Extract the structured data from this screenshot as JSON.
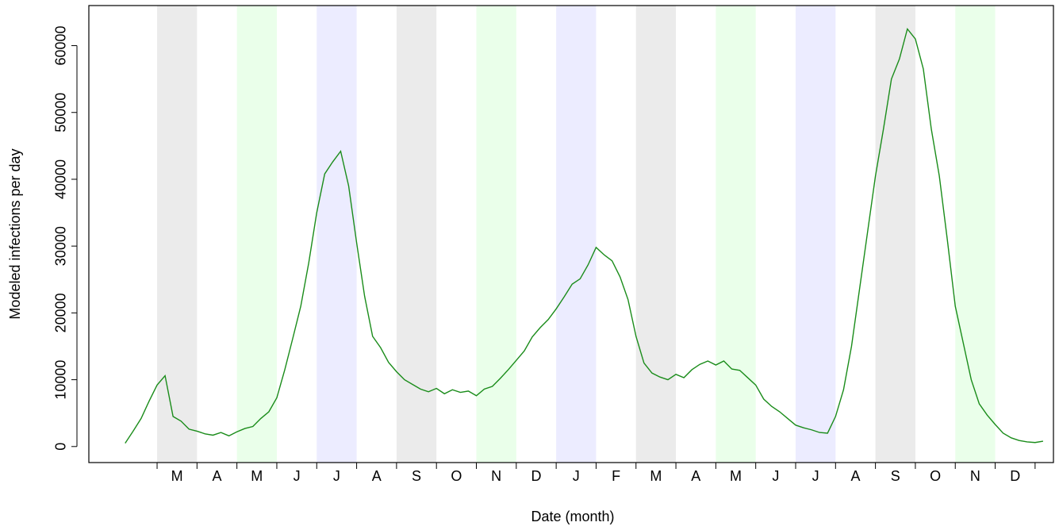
{
  "chart_data": {
    "type": "line",
    "x_label": "Date (month)",
    "y_label": "Modeled infections per day",
    "categories": [
      "M",
      "A",
      "M",
      "J",
      "J",
      "A",
      "S",
      "O",
      "N",
      "D",
      "J",
      "F",
      "M",
      "A",
      "M",
      "J",
      "J",
      "A",
      "S",
      "O",
      "N",
      "D"
    ],
    "xlim": [
      -1.71,
      22.46
    ],
    "ylim": [
      -2400,
      66000
    ],
    "xticks": [
      0,
      1,
      2,
      3,
      4,
      5,
      6,
      7,
      8,
      9,
      10,
      11,
      12,
      13,
      14,
      15,
      16,
      17,
      18,
      19,
      20,
      21,
      22
    ],
    "yticks": [
      0,
      10000,
      20000,
      30000,
      40000,
      50000,
      60000
    ],
    "bands": [
      {
        "from": 0,
        "to": 1,
        "color": "#ebebeb"
      },
      {
        "from": 2,
        "to": 3,
        "color": "#eaffea"
      },
      {
        "from": 4,
        "to": 5,
        "color": "#ececff"
      },
      {
        "from": 6,
        "to": 7,
        "color": "#ebebeb"
      },
      {
        "from": 8,
        "to": 9,
        "color": "#eaffea"
      },
      {
        "from": 10,
        "to": 11,
        "color": "#ececff"
      },
      {
        "from": 12,
        "to": 13,
        "color": "#ebebeb"
      },
      {
        "from": 14,
        "to": 15,
        "color": "#eaffea"
      },
      {
        "from": 16,
        "to": 17,
        "color": "#ececff"
      },
      {
        "from": 18,
        "to": 19,
        "color": "#ebebeb"
      },
      {
        "from": 20,
        "to": 21,
        "color": "#eaffea"
      }
    ],
    "series": [
      {
        "color": "#1a8c1a",
        "x": [
          -0.8,
          -0.6,
          -0.4,
          -0.2,
          0,
          0.2,
          0.4,
          0.6,
          0.8,
          1,
          1.2,
          1.4,
          1.6,
          1.8,
          2,
          2.2,
          2.4,
          2.6,
          2.8,
          3,
          3.2,
          3.4,
          3.6,
          3.8,
          4,
          4.2,
          4.4,
          4.6,
          4.8,
          5,
          5.2,
          5.4,
          5.6,
          5.8,
          6,
          6.2,
          6.4,
          6.6,
          6.8,
          7,
          7.2,
          7.4,
          7.6,
          7.8,
          8,
          8.2,
          8.4,
          8.6,
          8.8,
          9,
          9.2,
          9.4,
          9.6,
          9.8,
          10,
          10.2,
          10.4,
          10.6,
          10.8,
          11,
          11.2,
          11.4,
          11.6,
          11.8,
          12,
          12.2,
          12.4,
          12.6,
          12.8,
          13,
          13.2,
          13.4,
          13.6,
          13.8,
          14,
          14.2,
          14.4,
          14.6,
          14.8,
          15,
          15.2,
          15.4,
          15.6,
          15.8,
          16,
          16.2,
          16.4,
          16.6,
          16.8,
          17,
          17.2,
          17.4,
          17.6,
          17.8,
          18,
          18.2,
          18.4,
          18.6,
          18.8,
          19,
          19.2,
          19.4,
          19.6,
          19.8,
          20,
          20.2,
          20.4,
          20.6,
          20.8,
          21,
          21.2,
          21.4,
          21.6,
          21.8,
          22,
          22.2
        ],
        "values": [
          500,
          2300,
          4200,
          6800,
          9200,
          10600,
          4500,
          3800,
          2600,
          2300,
          1900,
          1700,
          2100,
          1600,
          2200,
          2700,
          3000,
          4200,
          5200,
          7300,
          11500,
          16200,
          21000,
          27500,
          35000,
          40800,
          42600,
          44200,
          39000,
          30500,
          22500,
          16500,
          14800,
          12600,
          11200,
          10000,
          9300,
          8600,
          8200,
          8700,
          7900,
          8500,
          8100,
          8300,
          7600,
          8600,
          9000,
          10200,
          11500,
          12900,
          14300,
          16400,
          17800,
          19000,
          20600,
          22400,
          24300,
          25100,
          27200,
          29800,
          28700,
          27800,
          25400,
          22000,
          16500,
          12500,
          11000,
          10400,
          10000,
          10800,
          10300,
          11500,
          12300,
          12800,
          12200,
          12800,
          11600,
          11400,
          10300,
          9200,
          7100,
          6000,
          5200,
          4200,
          3200,
          2800,
          2500,
          2100,
          2000,
          4500,
          8500,
          15000,
          23500,
          32000,
          40500,
          47500,
          55000,
          58000,
          62500,
          61000,
          56500,
          47500,
          40500,
          31000,
          21000,
          15500,
          10000,
          6400,
          4700,
          3300,
          2000,
          1300,
          900,
          700,
          600,
          800
        ]
      }
    ]
  }
}
